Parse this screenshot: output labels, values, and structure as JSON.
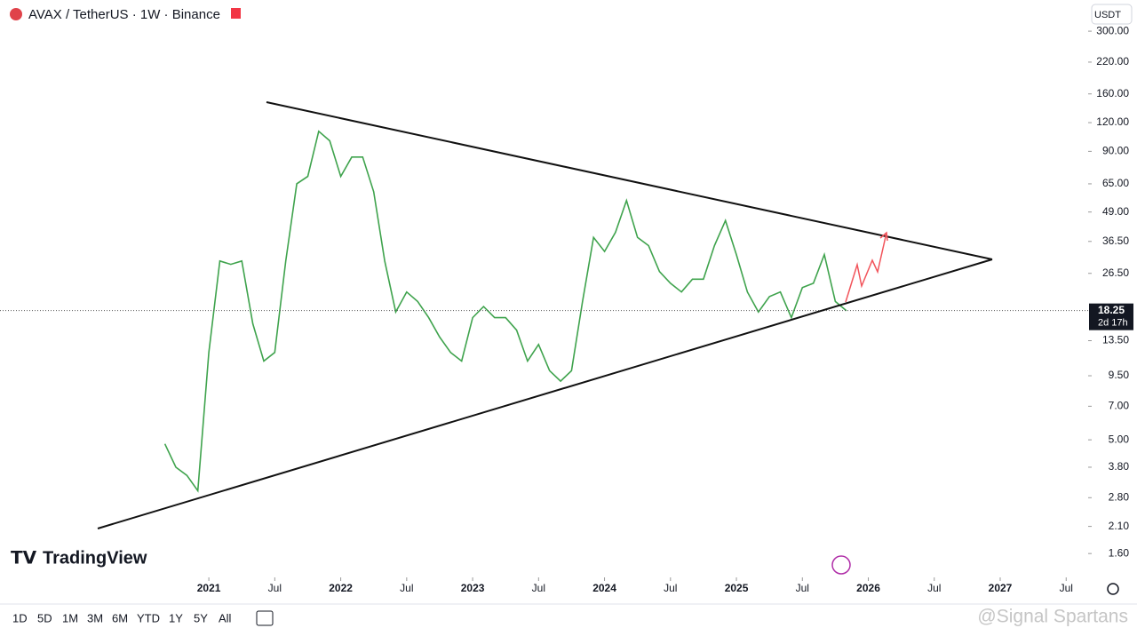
{
  "header": {
    "symbol": "AVAX / TetherUS · 1W · Binance",
    "currency": "USDT"
  },
  "chart_data": {
    "type": "line",
    "color": "#3fa34d",
    "log_scale": true,
    "x": [
      "2020-09",
      "2020-10",
      "2020-11",
      "2020-12",
      "2021-01",
      "2021-02",
      "2021-03",
      "2021-04",
      "2021-05",
      "2021-06",
      "2021-07",
      "2021-08",
      "2021-09",
      "2021-10",
      "2021-11",
      "2021-12",
      "2022-01",
      "2022-02",
      "2022-03",
      "2022-04",
      "2022-05",
      "2022-06",
      "2022-07",
      "2022-08",
      "2022-09",
      "2022-10",
      "2022-11",
      "2022-12",
      "2023-01",
      "2023-02",
      "2023-03",
      "2023-04",
      "2023-05",
      "2023-06",
      "2023-07",
      "2023-08",
      "2023-09",
      "2023-10",
      "2023-11",
      "2023-12",
      "2024-01",
      "2024-02",
      "2024-03",
      "2024-04",
      "2024-05",
      "2024-06",
      "2024-07",
      "2024-08",
      "2024-09",
      "2024-10",
      "2024-11",
      "2024-12",
      "2025-01",
      "2025-02",
      "2025-03",
      "2025-04",
      "2025-05",
      "2025-06",
      "2025-07",
      "2025-08",
      "2025-09",
      "2025-10",
      "2025-11"
    ],
    "values": [
      4.8,
      3.8,
      3.5,
      3.0,
      12,
      30,
      29,
      30,
      16,
      11,
      12,
      30,
      65,
      70,
      110,
      100,
      70,
      85,
      85,
      60,
      30,
      18,
      22,
      20,
      17,
      14,
      12,
      11,
      17,
      19,
      17,
      17,
      15,
      11,
      13,
      10,
      9,
      10,
      20,
      38,
      33,
      40,
      55,
      38,
      35,
      27,
      24,
      22,
      25,
      25,
      35,
      45,
      32,
      22,
      18,
      21,
      22,
      17,
      23,
      24,
      32,
      20,
      18.25
    ],
    "ylim": [
      1.26,
      410
    ],
    "yticks": [
      {
        "value": 300,
        "label": "300.00"
      },
      {
        "value": 220,
        "label": "220.00"
      },
      {
        "value": 160,
        "label": "160.00"
      },
      {
        "value": 120,
        "label": "120.00"
      },
      {
        "value": 90,
        "label": "90.00"
      },
      {
        "value": 65,
        "label": "65.00"
      },
      {
        "value": 49,
        "label": "49.00"
      },
      {
        "value": 36.5,
        "label": "36.50"
      },
      {
        "value": 26.5,
        "label": "26.50"
      },
      {
        "value": 13.5,
        "label": "13.50"
      },
      {
        "value": 9.5,
        "label": "9.50"
      },
      {
        "value": 7,
        "label": "7.00"
      },
      {
        "value": 5,
        "label": "5.00"
      },
      {
        "value": 3.8,
        "label": "3.80"
      },
      {
        "value": 2.8,
        "label": "2.80"
      },
      {
        "value": 2.1,
        "label": "2.10"
      },
      {
        "value": 1.6,
        "label": "1.60"
      }
    ],
    "xlim": [
      "2019-06",
      "2027-09"
    ],
    "xticks": [
      {
        "value": "2021-01",
        "label": "2021"
      },
      {
        "value": "2021-07",
        "label": "Jul"
      },
      {
        "value": "2022-01",
        "label": "2022"
      },
      {
        "value": "2022-07",
        "label": "Jul"
      },
      {
        "value": "2023-01",
        "label": "2023"
      },
      {
        "value": "2023-07",
        "label": "Jul"
      },
      {
        "value": "2024-01",
        "label": "2024"
      },
      {
        "value": "2024-07",
        "label": "Jul"
      },
      {
        "value": "2025-01",
        "label": "2025"
      },
      {
        "value": "2025-07",
        "label": "Jul"
      },
      {
        "value": "2026-01",
        "label": "2026"
      },
      {
        "value": "2026-07",
        "label": "Jul"
      },
      {
        "value": "2027-01",
        "label": "2027"
      },
      {
        "value": "2027-07",
        "label": "Jul"
      }
    ],
    "last_price": 18.25,
    "countdown": "2d 17h"
  },
  "toolbar": {
    "ranges": [
      "1D",
      "5D",
      "1M",
      "3M",
      "6M",
      "YTD",
      "1Y",
      "5Y",
      "All"
    ]
  },
  "branding": "TradingView",
  "watermark": "@Signal Spartans"
}
